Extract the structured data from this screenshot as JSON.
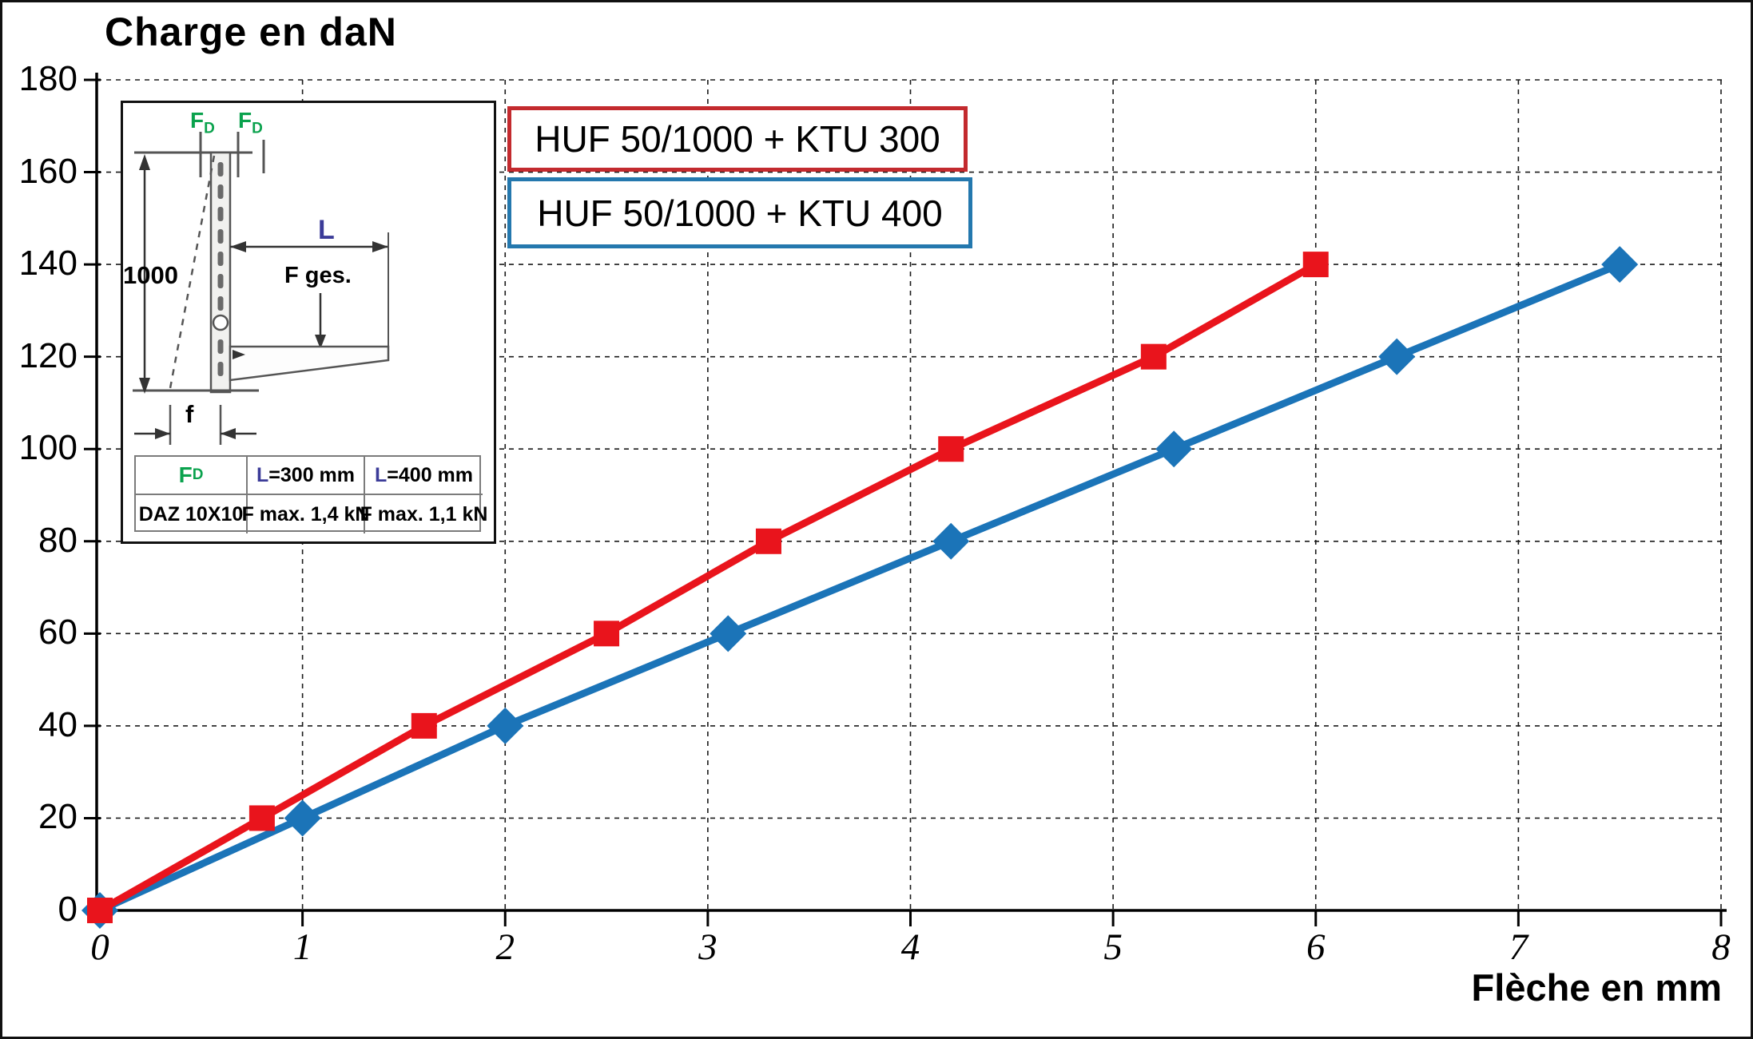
{
  "chart_data": {
    "type": "line",
    "title": "Charge en daN",
    "xlabel": "Flèche en mm",
    "ylabel": "Charge en daN",
    "xlim": [
      0,
      8
    ],
    "ylim": [
      0,
      180
    ],
    "xticks": [
      0,
      1,
      2,
      3,
      4,
      5,
      6,
      7,
      8
    ],
    "yticks": [
      0,
      20,
      40,
      60,
      80,
      100,
      120,
      140,
      160,
      180
    ],
    "grid": "dashed, both axes",
    "legend_position": "top, framed boxes",
    "series": [
      {
        "name": "HUF 50/1000 + KTU 300",
        "color": "#e9141c",
        "marker": "square",
        "points": [
          [
            0,
            0
          ],
          [
            0.8,
            20
          ],
          [
            1.6,
            40
          ],
          [
            2.5,
            60
          ],
          [
            3.3,
            80
          ],
          [
            4.2,
            100
          ],
          [
            5.2,
            120
          ],
          [
            6.0,
            140
          ]
        ]
      },
      {
        "name": "HUF 50/1000 + KTU 400",
        "color": "#1b74b8",
        "marker": "diamond",
        "points": [
          [
            0,
            0
          ],
          [
            1.0,
            20
          ],
          [
            2.0,
            40
          ],
          [
            3.1,
            60
          ],
          [
            4.2,
            80
          ],
          [
            5.3,
            100
          ],
          [
            6.4,
            120
          ],
          [
            7.5,
            140
          ]
        ]
      }
    ]
  },
  "inset": {
    "force_top_label": "F",
    "force_top_sub": "D",
    "dim_height": "1000",
    "dim_length_label": "L",
    "force_total_label": "F ges.",
    "deflection_label": "f",
    "table": {
      "header_force": "F",
      "header_force_sub": "D",
      "header_l300_prefix": "L",
      "header_l300_rest": "=300 mm",
      "header_l400_prefix": "L",
      "header_l400_rest": "=400 mm",
      "row_anchor": "DAZ 10X10",
      "row_fmax_300": "F max. 1,4 kN",
      "row_fmax_400": "F max. 1,1 kN"
    }
  }
}
